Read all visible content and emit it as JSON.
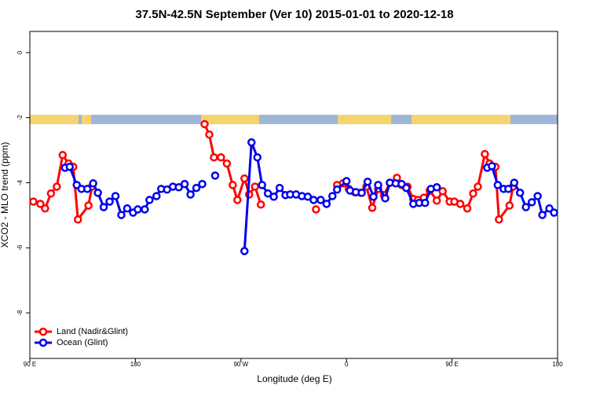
{
  "chart_data": {
    "type": "line",
    "title": "37.5N-42.5N September (Ver 10)   2015-01-01 to 2020-12-18",
    "x_label": "Longitude (deg E)",
    "y_label": "XCO2 - MLO trend (ppm)",
    "xlim": [
      90,
      540
    ],
    "ylim": [
      -9.4,
      0.65
    ],
    "xticks": [
      {
        "value": 90,
        "label": "90 E"
      },
      180,
      {
        "value": 270,
        "label": "90 W"
      },
      {
        "value": 360,
        "label": "0"
      },
      {
        "value": 450,
        "label": "90 E"
      },
      {
        "value": 540,
        "label": "180"
      }
    ],
    "yticks": [
      0,
      -2,
      -4,
      -6,
      -8
    ],
    "legend": "bottomleft",
    "series": [
      {
        "name": "Land (Nadir&Glint)",
        "color": "#ff0000",
        "x": [
          93,
          99,
          103,
          108,
          113,
          118,
          123,
          127,
          131,
          140,
          143,
          null,
          239,
          243,
          247,
          253,
          258,
          263,
          267,
          273,
          277,
          282,
          287,
          null,
          334,
          null,
          352,
          357,
          362,
          367,
          372,
          377,
          382,
          387,
          392,
          397,
          403,
          407,
          412,
          417,
          421,
          426,
          431,
          437,
          442,
          448,
          452,
          457,
          463,
          468,
          472,
          478,
          482,
          487,
          490,
          499,
          502
        ],
        "values": [
          -4.58,
          -4.65,
          -4.79,
          -4.33,
          -4.12,
          -3.15,
          -3.41,
          -3.51,
          -5.13,
          -4.7,
          -4.12,
          null,
          -2.2,
          -2.52,
          -3.22,
          -3.22,
          -3.41,
          -4.07,
          -4.53,
          -3.87,
          -4.36,
          -4.12,
          -4.67,
          null,
          -4.82,
          null,
          -4.07,
          -4.02,
          -4.19,
          -4.29,
          -4.31,
          -4.12,
          -4.77,
          -4.19,
          -4.38,
          -4.0,
          -3.85,
          -4.07,
          -4.12,
          -4.5,
          -4.53,
          -4.46,
          -4.24,
          -4.55,
          -4.26,
          -4.58,
          -4.58,
          -4.65,
          -4.79,
          -4.33,
          -4.12,
          -3.12,
          -3.41,
          -3.51,
          -5.13,
          -4.7,
          -4.12
        ]
      },
      {
        "name": "Ocean (Glint)",
        "color": "#0000ee",
        "x": [
          120,
          124,
          130,
          134,
          139,
          144,
          148,
          153,
          158,
          163,
          168,
          173,
          178,
          182,
          188,
          192,
          198,
          202,
          207,
          212,
          217,
          222,
          227,
          232,
          237,
          null,
          248,
          null,
          273,
          279,
          284,
          288,
          293,
          298,
          303,
          308,
          312,
          317,
          322,
          327,
          332,
          338,
          343,
          348,
          352,
          360,
          363,
          368,
          373,
          378,
          383,
          387,
          393,
          397,
          402,
          407,
          411,
          417,
          422,
          427,
          432,
          437,
          null,
          480,
          484,
          489,
          494,
          498,
          503,
          508,
          513,
          518,
          523,
          527,
          533,
          537
        ],
        "values": [
          -3.54,
          -3.51,
          -4.07,
          -4.19,
          -4.19,
          -4.02,
          -4.31,
          -4.75,
          -4.58,
          -4.41,
          -4.99,
          -4.79,
          -4.92,
          -4.82,
          -4.82,
          -4.53,
          -4.41,
          -4.19,
          -4.21,
          -4.12,
          -4.14,
          -4.04,
          -4.36,
          -4.16,
          -4.04,
          null,
          -3.78,
          null,
          -6.1,
          -2.76,
          -3.22,
          -4.07,
          -4.33,
          -4.43,
          -4.16,
          -4.38,
          -4.36,
          -4.36,
          -4.41,
          -4.43,
          -4.53,
          -4.53,
          -4.65,
          -4.41,
          -4.21,
          -3.95,
          -4.24,
          -4.29,
          -4.31,
          -3.97,
          -4.43,
          -4.07,
          -4.48,
          -4.0,
          -4.02,
          -4.04,
          -4.16,
          -4.65,
          -4.62,
          -4.62,
          -4.19,
          -4.14,
          null,
          -3.54,
          -3.49,
          -4.07,
          -4.19,
          -4.19,
          -4.0,
          -4.31,
          -4.75,
          -4.6,
          -4.41,
          -4.99,
          -4.79,
          -4.92
        ]
      }
    ]
  }
}
